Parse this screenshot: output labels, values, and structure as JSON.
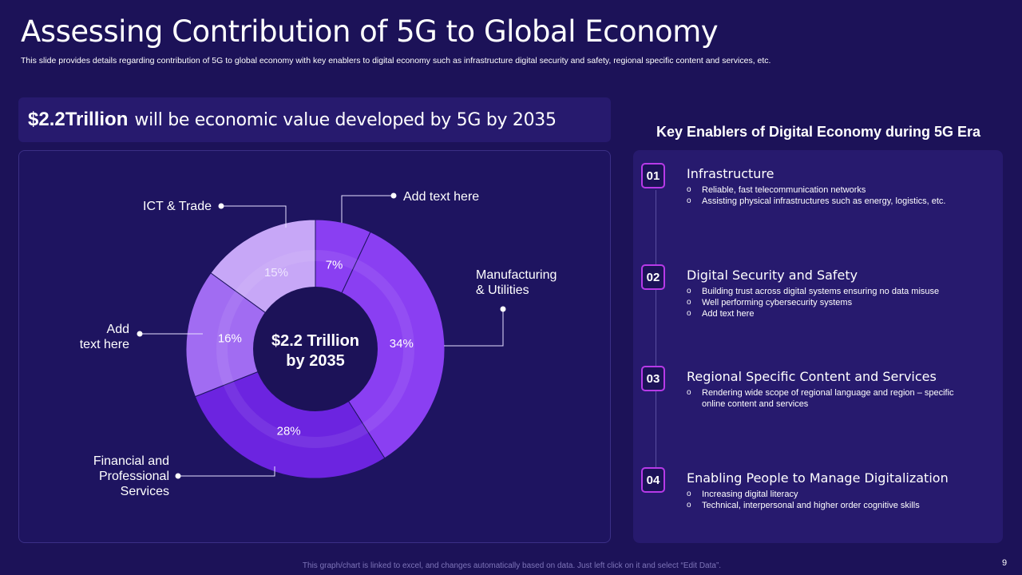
{
  "header": {
    "title": "Assessing Contribution of 5G to Global Economy",
    "subtitle": "This slide provides details regarding contribution of 5G to global economy with key enablers to digital economy such as infrastructure digital security and safety, regional specific content and services, etc."
  },
  "headline": {
    "value": "$2.2Trillion",
    "text": "will be economic value developed by 5G by 2035"
  },
  "chart_data": {
    "type": "pie",
    "variant": "donut",
    "center_label": [
      "$2.2 Trillion",
      "by 2035"
    ],
    "slices": [
      {
        "label": "Add text here",
        "value": 7,
        "pct_label": "7%",
        "color": "#8a3ff2"
      },
      {
        "label": "Manufacturing & Utilities",
        "value": 34,
        "pct_label": "34%",
        "color": "#8a3ff2"
      },
      {
        "label": "Financial and Professional Services",
        "value": 28,
        "pct_label": "28%",
        "color": "#6c24e0"
      },
      {
        "label": "Add text here",
        "value": 16,
        "pct_label": "16%",
        "color": "#a16cf2"
      },
      {
        "label": "ICT & Trade",
        "value": 15,
        "pct_label": "15%",
        "color": "#c7a7f7"
      }
    ],
    "callouts": {
      "top_right": [
        "Add text here"
      ],
      "right": [
        "Manufacturing",
        "& Utilities"
      ],
      "bottom_left": [
        "Financial and",
        "Professional",
        "Services"
      ],
      "left": [
        "Add",
        "text here"
      ],
      "top_left": [
        "ICT & Trade"
      ]
    }
  },
  "enablers": {
    "title": "Key Enablers of Digital Economy during 5G Era",
    "items": [
      {
        "num": "01",
        "title": "Infrastructure",
        "bullets": [
          "Reliable, fast telecommunication networks",
          "Assisting physical infrastructures such as energy, logistics, etc."
        ]
      },
      {
        "num": "02",
        "title": "Digital Security and Safety",
        "bullets": [
          "Building trust across digital systems ensuring no data misuse",
          "Well performing cybersecurity systems",
          "Add text here"
        ]
      },
      {
        "num": "03",
        "title": "Regional Specific Content and Services",
        "bullets": [
          "Rendering wide scope of regional language and region – specific online content and services"
        ]
      },
      {
        "num": "04",
        "title": "Enabling People to Manage Digitalization",
        "bullets": [
          "Increasing digital literacy",
          "Technical, interpersonal and higher order cognitive skills"
        ]
      }
    ]
  },
  "footer": {
    "note": "This graph/chart is linked to excel,  and changes automatically based on data. Just left click on it and select “Edit Data”.",
    "page": "9"
  },
  "colors": {
    "background": "#1c1258",
    "panel": "#271a6e",
    "accent": "#b73ae8",
    "center": "#1c1258"
  }
}
